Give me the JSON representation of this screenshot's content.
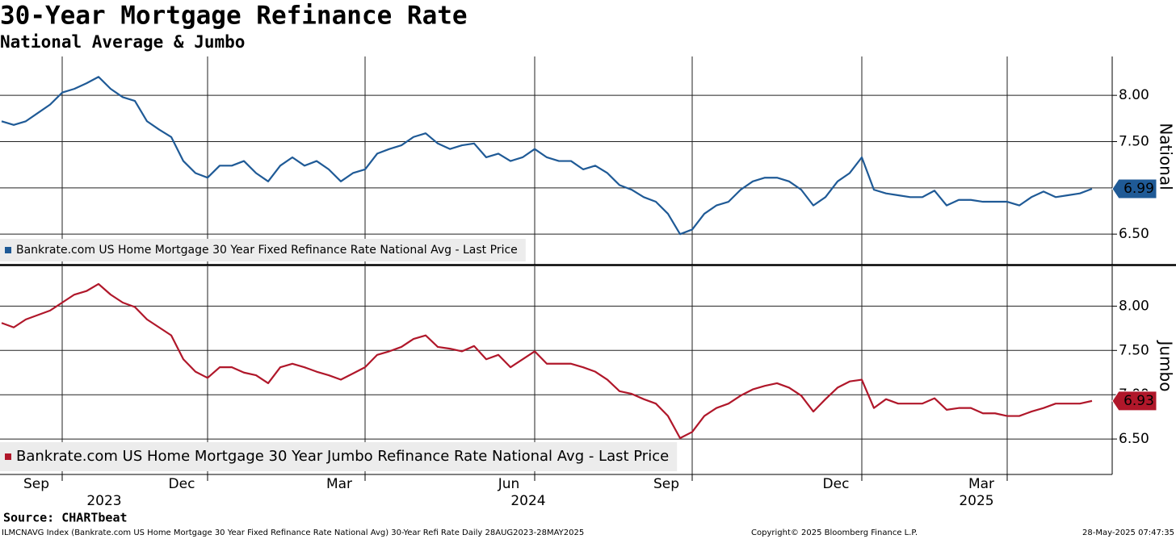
{
  "title": "30-Year Mortgage Refinance Rate",
  "subtitle": "National Average & Jumbo",
  "source": "Source: CHARTbeat",
  "footer": {
    "description": "ILMCNAVG Index (Bankrate.com US Home Mortgage 30 Year Fixed Refinance Rate National Avg) 30-Year Refi Rate  Daily 28AUG2023-28MAY2025",
    "copyright": "Copyright© 2025 Bloomberg Finance L.P.",
    "timestamp": "28-May-2025 07:47:35"
  },
  "chart_data": [
    {
      "type": "line",
      "y_label": "National",
      "grid": true,
      "ylim": [
        6.17,
        8.42
      ],
      "yticks": [
        {
          "value": 6.5,
          "label": "6.50"
        },
        {
          "value": 7,
          "label": "7.00"
        },
        {
          "value": 7.5,
          "label": "7.50"
        },
        {
          "value": 8,
          "label": "8.00"
        }
      ],
      "series": [
        {
          "name": "Bankrate.com US Home Mortgage 30 Year Fixed Refinance Rate National Avg - Last Price",
          "color": "#1f5a96",
          "values": [
            7.72,
            7.68,
            7.72,
            7.81,
            7.9,
            8.03,
            8.07,
            8.13,
            8.2,
            8.07,
            7.98,
            7.94,
            7.72,
            7.63,
            7.55,
            7.29,
            7.16,
            7.11,
            7.24,
            7.24,
            7.29,
            7.16,
            7.07,
            7.24,
            7.33,
            7.24,
            7.29,
            7.2,
            7.07,
            7.16,
            7.2,
            7.37,
            7.42,
            7.46,
            7.55,
            7.59,
            7.48,
            7.42,
            7.46,
            7.48,
            7.33,
            7.37,
            7.29,
            7.33,
            7.42,
            7.33,
            7.29,
            7.29,
            7.2,
            7.24,
            7.16,
            7.03,
            6.98,
            6.9,
            6.85,
            6.72,
            6.5,
            6.55,
            6.72,
            6.81,
            6.85,
            6.98,
            7.07,
            7.11,
            7.11,
            7.07,
            6.98,
            6.81,
            6.9,
            7.07,
            7.16,
            7.33,
            6.98,
            6.94,
            6.92,
            6.9,
            6.9,
            6.97,
            6.81,
            6.87,
            6.87,
            6.85,
            6.85,
            6.85,
            6.81,
            6.9,
            6.96,
            6.9,
            6.92,
            6.94,
            6.99
          ]
        }
      ]
    },
    {
      "type": "line",
      "y_label": "Jumbo",
      "grid": true,
      "ylim": [
        6.1,
        8.45
      ],
      "yticks": [
        {
          "value": 6.5,
          "label": "6.50"
        },
        {
          "value": 7,
          "label": "7.00"
        },
        {
          "value": 7.5,
          "label": "7.50"
        },
        {
          "value": 8,
          "label": "8.00"
        }
      ],
      "categories": [
        null,
        null,
        null,
        null,
        null,
        "Sep",
        null,
        null,
        null,
        null,
        null,
        null,
        null,
        null,
        null,
        null,
        null,
        "Dec",
        null,
        null,
        null,
        null,
        null,
        null,
        null,
        null,
        null,
        null,
        null,
        null,
        "Mar",
        null,
        null,
        null,
        null,
        null,
        null,
        null,
        null,
        null,
        null,
        null,
        null,
        null,
        "Jun",
        null,
        null,
        null,
        null,
        null,
        null,
        null,
        null,
        null,
        null,
        null,
        null,
        "Sep",
        null,
        null,
        null,
        null,
        null,
        null,
        null,
        null,
        null,
        null,
        null,
        null,
        null,
        "Dec",
        null,
        null,
        null,
        null,
        null,
        null,
        null,
        null,
        null,
        null,
        null,
        "Mar",
        null,
        null,
        null,
        null,
        null,
        null,
        null
      ],
      "category_groups": [
        null,
        null,
        null,
        null,
        null,
        null,
        null,
        null,
        null,
        "2023",
        null,
        null,
        null,
        null,
        null,
        null,
        null,
        null,
        null,
        null,
        null,
        null,
        null,
        null,
        null,
        null,
        null,
        null,
        null,
        null,
        null,
        null,
        null,
        null,
        null,
        null,
        null,
        null,
        null,
        null,
        null,
        null,
        null,
        null,
        "2024",
        null,
        null,
        null,
        null,
        null,
        null,
        null,
        null,
        null,
        null,
        null,
        null,
        null,
        null,
        null,
        null,
        null,
        null,
        null,
        null,
        null,
        null,
        null,
        null,
        null,
        null,
        null,
        null,
        null,
        null,
        null,
        null,
        null,
        null,
        null,
        null,
        "2025",
        null,
        null,
        null,
        null,
        null,
        null,
        null,
        null,
        null
      ],
      "series": [
        {
          "name": "Bankrate.com US Home Mortgage 30 Year Jumbo Refinance Rate National Avg - Last Price",
          "color": "#b0172a",
          "values": [
            7.81,
            7.76,
            7.85,
            7.9,
            7.95,
            8.04,
            8.13,
            8.17,
            8.25,
            8.13,
            8.04,
            7.99,
            7.85,
            7.76,
            7.67,
            7.4,
            7.26,
            7.19,
            7.31,
            7.31,
            7.25,
            7.22,
            7.13,
            7.31,
            7.35,
            7.31,
            7.26,
            7.22,
            7.17,
            7.24,
            7.31,
            7.45,
            7.49,
            7.54,
            7.63,
            7.67,
            7.54,
            7.52,
            7.49,
            7.55,
            7.4,
            7.45,
            7.31,
            7.4,
            7.49,
            7.35,
            7.35,
            7.35,
            7.31,
            7.26,
            7.17,
            7.04,
            7.01,
            6.95,
            6.9,
            6.76,
            6.51,
            6.58,
            6.76,
            6.85,
            6.9,
            6.99,
            7.06,
            7.1,
            7.13,
            7.08,
            6.99,
            6.81,
            6.95,
            7.08,
            7.15,
            7.17,
            6.85,
            6.95,
            6.9,
            6.9,
            6.9,
            6.96,
            6.83,
            6.85,
            6.85,
            6.79,
            6.79,
            6.76,
            6.76,
            6.81,
            6.85,
            6.9,
            6.9,
            6.9,
            6.93
          ]
        }
      ]
    }
  ]
}
